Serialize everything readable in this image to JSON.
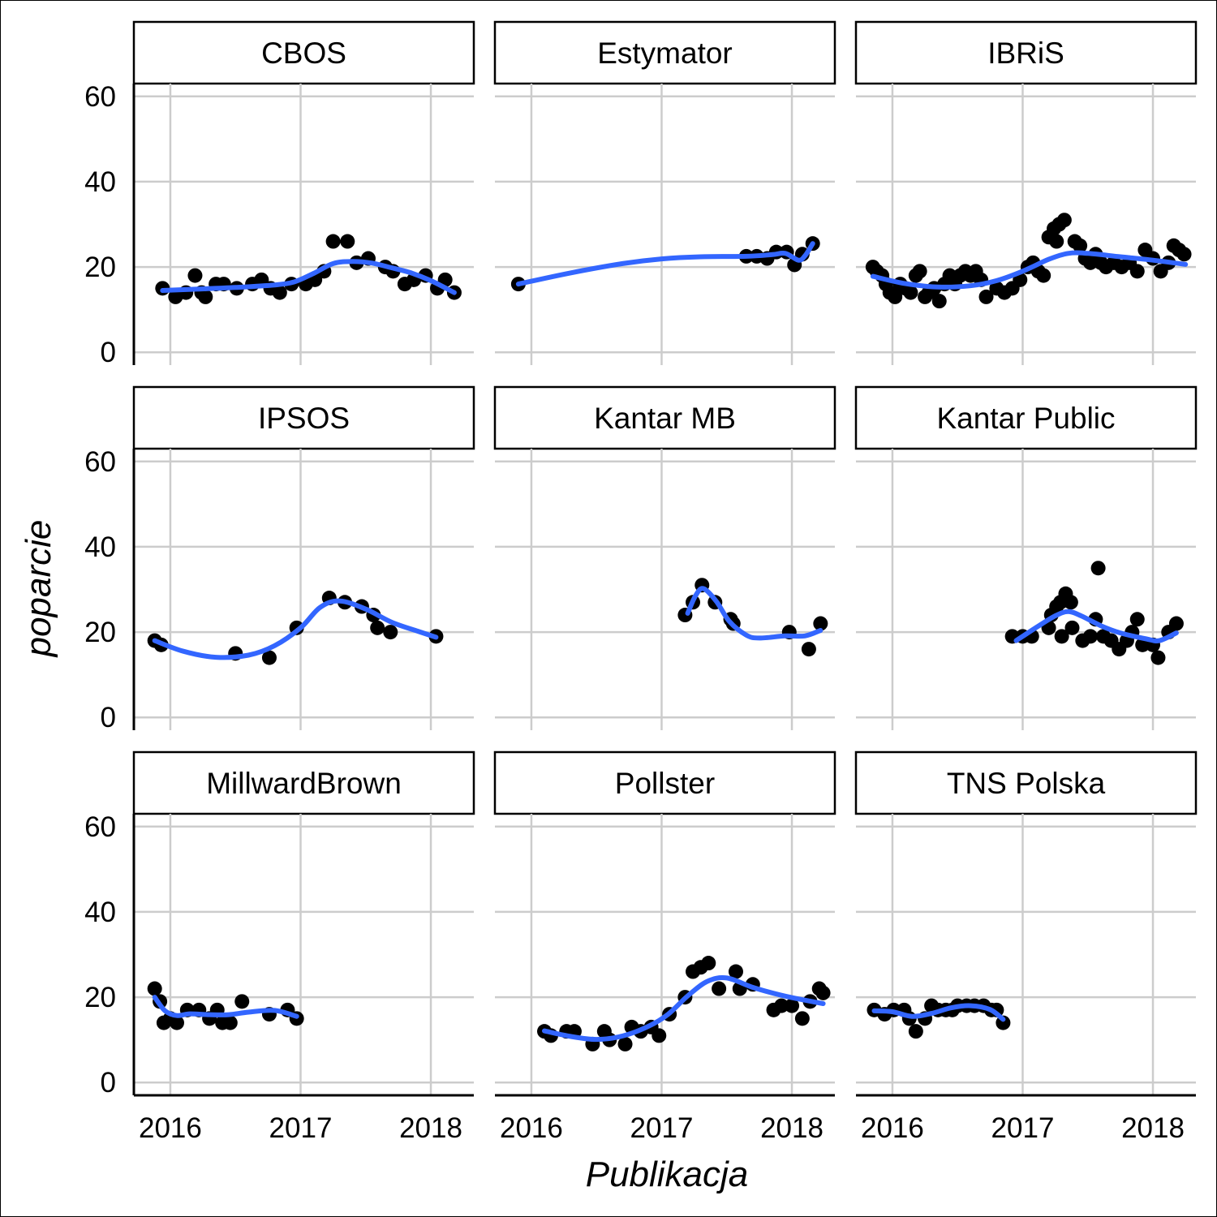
{
  "chart_data": {
    "type": "scatter",
    "facet_by": "pollster",
    "xlabel": "Publikacja",
    "ylabel": "poparcie",
    "xlim": [
      2015.72,
      2018.33
    ],
    "ylim": [
      -3,
      63
    ],
    "x_ticks": [
      2016,
      2017,
      2018
    ],
    "y_ticks": [
      0,
      20,
      40,
      60
    ],
    "grid": true,
    "colors": {
      "points": "#000000",
      "smooth": "#3366ff",
      "grid": "#cccccc"
    },
    "panels": [
      {
        "name": "CBOS",
        "points": [
          [
            2015.94,
            15
          ],
          [
            2016.04,
            13
          ],
          [
            2016.12,
            14
          ],
          [
            2016.19,
            18
          ],
          [
            2016.24,
            14
          ],
          [
            2016.27,
            13
          ],
          [
            2016.35,
            16
          ],
          [
            2016.41,
            16
          ],
          [
            2016.51,
            15
          ],
          [
            2016.63,
            16
          ],
          [
            2016.7,
            17
          ],
          [
            2016.77,
            15
          ],
          [
            2016.84,
            14
          ],
          [
            2016.93,
            16
          ],
          [
            2017.04,
            16
          ],
          [
            2017.11,
            17
          ],
          [
            2017.18,
            19
          ],
          [
            2017.25,
            26
          ],
          [
            2017.36,
            26
          ],
          [
            2017.43,
            21
          ],
          [
            2017.52,
            22
          ],
          [
            2017.65,
            20
          ],
          [
            2017.71,
            19
          ],
          [
            2017.8,
            16
          ],
          [
            2017.87,
            17
          ],
          [
            2017.96,
            18
          ],
          [
            2018.05,
            15
          ],
          [
            2018.11,
            17
          ],
          [
            2018.18,
            14
          ]
        ],
        "smooth": [
          [
            2015.94,
            14.5
          ],
          [
            2016.2,
            14.8
          ],
          [
            2016.5,
            15.2
          ],
          [
            2016.8,
            15.8
          ],
          [
            2016.95,
            16.5
          ],
          [
            2017.1,
            18.5
          ],
          [
            2017.25,
            20.8
          ],
          [
            2017.4,
            21.3
          ],
          [
            2017.55,
            20.9
          ],
          [
            2017.7,
            19.8
          ],
          [
            2017.85,
            18.6
          ],
          [
            2018.0,
            16.8
          ],
          [
            2018.18,
            14
          ]
        ]
      },
      {
        "name": "Estymator",
        "points": [
          [
            2015.9,
            16
          ],
          [
            2017.65,
            22.5
          ],
          [
            2017.73,
            22.5
          ],
          [
            2017.81,
            22
          ],
          [
            2017.88,
            23.5
          ],
          [
            2017.96,
            23.5
          ],
          [
            2018.02,
            20.5
          ],
          [
            2018.08,
            23
          ],
          [
            2018.16,
            25.5
          ]
        ],
        "smooth": [
          [
            2015.9,
            16
          ],
          [
            2016.3,
            18.6
          ],
          [
            2016.7,
            20.8
          ],
          [
            2017.0,
            21.9
          ],
          [
            2017.3,
            22.4
          ],
          [
            2017.65,
            22.5
          ],
          [
            2017.85,
            22.9
          ],
          [
            2017.95,
            23.2
          ],
          [
            2018.05,
            21.6
          ],
          [
            2018.1,
            22.6
          ],
          [
            2018.16,
            25.5
          ]
        ]
      },
      {
        "name": "IBRiS",
        "points": [
          [
            2015.85,
            20
          ],
          [
            2015.88,
            19
          ],
          [
            2015.92,
            18
          ],
          [
            2015.95,
            16
          ],
          [
            2015.98,
            14
          ],
          [
            2016.02,
            13
          ],
          [
            2016.06,
            16
          ],
          [
            2016.1,
            15
          ],
          [
            2016.14,
            14
          ],
          [
            2016.18,
            18
          ],
          [
            2016.21,
            19
          ],
          [
            2016.25,
            13
          ],
          [
            2016.28,
            14
          ],
          [
            2016.32,
            15
          ],
          [
            2016.36,
            12
          ],
          [
            2016.4,
            16
          ],
          [
            2016.44,
            18
          ],
          [
            2016.48,
            16
          ],
          [
            2016.52,
            18
          ],
          [
            2016.56,
            19
          ],
          [
            2016.6,
            18
          ],
          [
            2016.64,
            19
          ],
          [
            2016.68,
            17
          ],
          [
            2016.72,
            13
          ],
          [
            2016.8,
            15
          ],
          [
            2016.86,
            14
          ],
          [
            2016.92,
            15
          ],
          [
            2016.98,
            17
          ],
          [
            2017.04,
            20
          ],
          [
            2017.08,
            21
          ],
          [
            2017.12,
            19
          ],
          [
            2017.16,
            18
          ],
          [
            2017.2,
            27
          ],
          [
            2017.24,
            29
          ],
          [
            2017.28,
            30
          ],
          [
            2017.32,
            31
          ],
          [
            2017.26,
            26
          ],
          [
            2017.4,
            26
          ],
          [
            2017.44,
            25
          ],
          [
            2017.48,
            22
          ],
          [
            2017.52,
            21
          ],
          [
            2017.56,
            23
          ],
          [
            2017.6,
            21
          ],
          [
            2017.64,
            20
          ],
          [
            2017.7,
            21
          ],
          [
            2017.76,
            20
          ],
          [
            2017.82,
            21
          ],
          [
            2017.88,
            19
          ],
          [
            2017.94,
            24
          ],
          [
            2018.0,
            22
          ],
          [
            2018.06,
            19
          ],
          [
            2018.12,
            21
          ],
          [
            2018.16,
            25
          ],
          [
            2018.2,
            24
          ],
          [
            2018.24,
            23
          ]
        ],
        "smooth": [
          [
            2015.85,
            17.8
          ],
          [
            2016.1,
            16.1
          ],
          [
            2016.35,
            15.3
          ],
          [
            2016.6,
            15.6
          ],
          [
            2016.8,
            16.8
          ],
          [
            2017.0,
            19.0
          ],
          [
            2017.2,
            21.8
          ],
          [
            2017.35,
            23.2
          ],
          [
            2017.5,
            23.2
          ],
          [
            2017.75,
            22.4
          ],
          [
            2018.0,
            21.6
          ],
          [
            2018.25,
            20.6
          ]
        ]
      },
      {
        "name": "IPSOS",
        "points": [
          [
            2015.88,
            18
          ],
          [
            2015.93,
            17
          ],
          [
            2016.5,
            15
          ],
          [
            2016.76,
            14
          ],
          [
            2016.97,
            21
          ],
          [
            2017.22,
            28
          ],
          [
            2017.34,
            27
          ],
          [
            2017.47,
            26
          ],
          [
            2017.56,
            24
          ],
          [
            2017.59,
            21
          ],
          [
            2017.69,
            20
          ],
          [
            2018.04,
            19
          ]
        ],
        "smooth": [
          [
            2015.88,
            18
          ],
          [
            2016.1,
            15.5
          ],
          [
            2016.35,
            14.1
          ],
          [
            2016.6,
            14.6
          ],
          [
            2016.8,
            16.8
          ],
          [
            2017.0,
            21.0
          ],
          [
            2017.15,
            25.8
          ],
          [
            2017.3,
            27.3
          ],
          [
            2017.5,
            25.4
          ],
          [
            2017.7,
            22.3
          ],
          [
            2017.9,
            20.2
          ],
          [
            2018.04,
            18.8
          ]
        ]
      },
      {
        "name": "Kantar MB",
        "points": [
          [
            2017.18,
            24
          ],
          [
            2017.24,
            27
          ],
          [
            2017.31,
            31
          ],
          [
            2017.41,
            27
          ],
          [
            2017.53,
            23
          ],
          [
            2017.55,
            22
          ],
          [
            2017.98,
            20
          ],
          [
            2018.13,
            16
          ],
          [
            2018.22,
            22
          ]
        ],
        "smooth": [
          [
            2017.2,
            24.4
          ],
          [
            2017.26,
            28.5
          ],
          [
            2017.32,
            30.2
          ],
          [
            2017.42,
            27.2
          ],
          [
            2017.52,
            22.5
          ],
          [
            2017.65,
            19.3
          ],
          [
            2017.75,
            18.6
          ],
          [
            2017.95,
            19.1
          ],
          [
            2018.1,
            19.1
          ],
          [
            2018.22,
            20.4
          ]
        ]
      },
      {
        "name": "Kantar Public",
        "points": [
          [
            2016.92,
            19
          ],
          [
            2017.0,
            19
          ],
          [
            2017.07,
            19
          ],
          [
            2017.2,
            21
          ],
          [
            2017.22,
            24
          ],
          [
            2017.26,
            26
          ],
          [
            2017.29,
            27
          ],
          [
            2017.33,
            29
          ],
          [
            2017.37,
            27
          ],
          [
            2017.3,
            19
          ],
          [
            2017.38,
            21
          ],
          [
            2017.46,
            18
          ],
          [
            2017.52,
            19
          ],
          [
            2017.56,
            23
          ],
          [
            2017.58,
            35
          ],
          [
            2017.62,
            19
          ],
          [
            2017.68,
            18
          ],
          [
            2017.74,
            16
          ],
          [
            2017.8,
            18
          ],
          [
            2017.84,
            20
          ],
          [
            2017.88,
            23
          ],
          [
            2017.92,
            17
          ],
          [
            2018.0,
            17
          ],
          [
            2018.04,
            14
          ],
          [
            2018.12,
            20
          ],
          [
            2018.18,
            22
          ]
        ],
        "smooth": [
          [
            2016.95,
            18
          ],
          [
            2017.1,
            21
          ],
          [
            2017.25,
            23.8
          ],
          [
            2017.35,
            24.8
          ],
          [
            2017.45,
            23.8
          ],
          [
            2017.6,
            21.5
          ],
          [
            2017.75,
            19.8
          ],
          [
            2017.95,
            18.4
          ],
          [
            2018.05,
            18.0
          ],
          [
            2018.18,
            19.8
          ]
        ]
      },
      {
        "name": "MillwardBrown",
        "points": [
          [
            2015.88,
            22
          ],
          [
            2015.92,
            19
          ],
          [
            2015.95,
            14
          ],
          [
            2016.0,
            15
          ],
          [
            2016.05,
            14
          ],
          [
            2016.13,
            17
          ],
          [
            2016.22,
            17
          ],
          [
            2016.3,
            15
          ],
          [
            2016.36,
            17
          ],
          [
            2016.4,
            14
          ],
          [
            2016.46,
            14
          ],
          [
            2016.55,
            19
          ],
          [
            2016.76,
            16
          ],
          [
            2016.9,
            17
          ],
          [
            2016.97,
            15
          ]
        ],
        "smooth": [
          [
            2015.88,
            20
          ],
          [
            2015.96,
            16.8
          ],
          [
            2016.05,
            15.7
          ],
          [
            2016.15,
            16.1
          ],
          [
            2016.3,
            15.9
          ],
          [
            2016.45,
            15.9
          ],
          [
            2016.6,
            16.5
          ],
          [
            2016.8,
            16.9
          ],
          [
            2016.97,
            15.5
          ]
        ]
      },
      {
        "name": "Pollster",
        "points": [
          [
            2016.1,
            12
          ],
          [
            2016.15,
            11
          ],
          [
            2016.27,
            12
          ],
          [
            2016.33,
            12
          ],
          [
            2016.47,
            9
          ],
          [
            2016.56,
            12
          ],
          [
            2016.6,
            10
          ],
          [
            2016.72,
            9
          ],
          [
            2016.77,
            13
          ],
          [
            2016.84,
            12
          ],
          [
            2016.92,
            13
          ],
          [
            2016.98,
            11
          ],
          [
            2017.06,
            16
          ],
          [
            2017.18,
            20
          ],
          [
            2017.24,
            26
          ],
          [
            2017.3,
            27
          ],
          [
            2017.36,
            28
          ],
          [
            2017.44,
            22
          ],
          [
            2017.57,
            26
          ],
          [
            2017.6,
            22
          ],
          [
            2017.7,
            23
          ],
          [
            2017.86,
            17
          ],
          [
            2017.92,
            18
          ],
          [
            2018.0,
            18
          ],
          [
            2018.08,
            15
          ],
          [
            2018.14,
            19
          ],
          [
            2018.21,
            22
          ],
          [
            2018.24,
            21
          ]
        ],
        "smooth": [
          [
            2016.1,
            12.1
          ],
          [
            2016.3,
            10.8
          ],
          [
            2016.5,
            10.1
          ],
          [
            2016.7,
            10.9
          ],
          [
            2016.9,
            13.2
          ],
          [
            2017.05,
            16.0
          ],
          [
            2017.2,
            20.3
          ],
          [
            2017.35,
            23.7
          ],
          [
            2017.5,
            24.5
          ],
          [
            2017.7,
            22.3
          ],
          [
            2017.9,
            20.6
          ],
          [
            2018.05,
            19.6
          ],
          [
            2018.24,
            18.5
          ]
        ]
      },
      {
        "name": "TNS Polska",
        "points": [
          [
            2015.86,
            17
          ],
          [
            2015.94,
            16
          ],
          [
            2016.01,
            17
          ],
          [
            2016.09,
            17
          ],
          [
            2016.13,
            15
          ],
          [
            2016.18,
            12
          ],
          [
            2016.25,
            15
          ],
          [
            2016.3,
            18
          ],
          [
            2016.35,
            17
          ],
          [
            2016.41,
            17
          ],
          [
            2016.46,
            17
          ],
          [
            2016.5,
            18
          ],
          [
            2016.57,
            18
          ],
          [
            2016.63,
            18
          ],
          [
            2016.7,
            18
          ],
          [
            2016.76,
            17
          ],
          [
            2016.8,
            17
          ],
          [
            2016.85,
            14
          ]
        ],
        "smooth": [
          [
            2015.86,
            16.8
          ],
          [
            2016.0,
            16.6
          ],
          [
            2016.15,
            15.5
          ],
          [
            2016.3,
            16.2
          ],
          [
            2016.45,
            17.5
          ],
          [
            2016.6,
            18.0
          ],
          [
            2016.75,
            17.1
          ],
          [
            2016.85,
            14.8
          ]
        ]
      }
    ]
  }
}
